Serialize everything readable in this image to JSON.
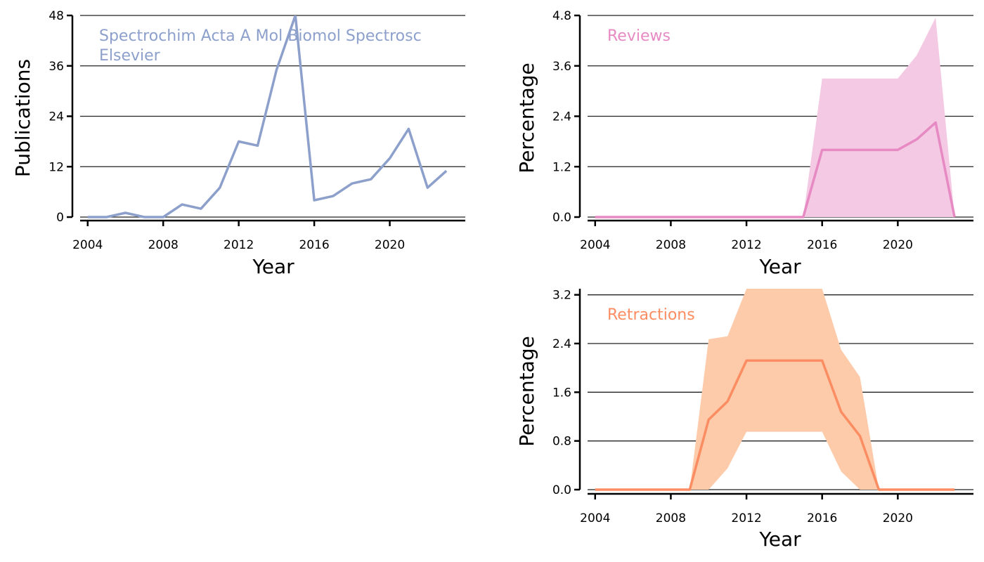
{
  "chart_data": [
    {
      "id": "publications",
      "type": "line",
      "xlabel": "Year",
      "ylabel": "Publications",
      "xlim": [
        2003.6,
        2024
      ],
      "ylim": [
        0,
        48
      ],
      "xticks": [
        2004,
        2008,
        2012,
        2016,
        2020
      ],
      "yticks": [
        0,
        12,
        24,
        36,
        48
      ],
      "ytick_labels": [
        "0",
        "12",
        "24",
        "36",
        "48"
      ],
      "grid": "horizontal",
      "annotations": [
        "Spectrochim Acta A Mol Biomol Spectrosc",
        "Elsevier"
      ],
      "color": "#8da0cb",
      "band_color": "",
      "series": [
        {
          "x": [
            2004,
            2005,
            2006,
            2007,
            2008,
            2009,
            2010,
            2011,
            2012,
            2013,
            2014,
            2015,
            2016,
            2017,
            2018,
            2019,
            2020,
            2021,
            2022,
            2023
          ],
          "values": [
            0,
            0,
            1,
            0,
            0,
            3,
            2,
            7,
            18,
            17,
            35,
            48,
            4,
            5,
            8,
            9,
            14,
            21,
            7,
            11
          ]
        }
      ]
    },
    {
      "id": "reviews",
      "type": "area",
      "xlabel": "Year",
      "ylabel": "Percentage",
      "xlim": [
        2003.6,
        2024
      ],
      "ylim": [
        0,
        4.8
      ],
      "xticks": [
        2004,
        2008,
        2012,
        2016,
        2020
      ],
      "yticks": [
        0,
        1.2,
        2.4,
        3.6,
        4.8
      ],
      "ytick_labels": [
        "0.0",
        "1.2",
        "2.4",
        "3.6",
        "4.8"
      ],
      "grid": "horizontal",
      "annotations": [
        "Reviews"
      ],
      "color": "#e78ac3",
      "band_color": "#f4c9e3",
      "series": [
        {
          "x": [
            2004,
            2005,
            2006,
            2007,
            2008,
            2009,
            2010,
            2011,
            2012,
            2013,
            2014,
            2015,
            2016,
            2017,
            2018,
            2019,
            2020,
            2021,
            2022,
            2023
          ],
          "values": [
            0,
            0,
            0,
            0,
            0,
            0,
            0,
            0,
            0,
            0,
            0,
            0,
            1.6,
            1.6,
            1.6,
            1.6,
            1.6,
            1.85,
            2.25,
            0
          ],
          "lower": [
            0,
            0,
            0,
            0,
            0,
            0,
            0,
            0,
            0,
            0,
            0,
            0,
            0,
            0,
            0,
            0,
            0,
            0,
            0,
            0
          ],
          "upper": [
            0,
            0,
            0,
            0,
            0,
            0,
            0,
            0,
            0,
            0,
            0,
            0,
            3.3,
            3.3,
            3.3,
            3.3,
            3.3,
            3.85,
            4.75,
            0
          ]
        }
      ]
    },
    {
      "id": "retractions",
      "type": "area",
      "xlabel": "Year",
      "ylabel": "Percentage",
      "xlim": [
        2003.6,
        2024
      ],
      "ylim": [
        0,
        3.3
      ],
      "xticks": [
        2004,
        2008,
        2012,
        2016,
        2020
      ],
      "yticks": [
        0,
        0.8,
        1.6,
        2.4,
        3.2
      ],
      "ytick_labels": [
        "0.0",
        "0.8",
        "1.6",
        "2.4",
        "3.2"
      ],
      "grid": "horizontal",
      "annotations": [
        "Retractions"
      ],
      "color": "#fc8d62",
      "band_color": "#fdcbaa",
      "series": [
        {
          "x": [
            2004,
            2005,
            2006,
            2007,
            2008,
            2009,
            2010,
            2011,
            2012,
            2013,
            2014,
            2015,
            2016,
            2017,
            2018,
            2019,
            2020,
            2021,
            2022,
            2023
          ],
          "values": [
            0,
            0,
            0,
            0,
            0,
            0,
            1.15,
            1.45,
            2.12,
            2.12,
            2.12,
            2.12,
            2.12,
            1.28,
            0.88,
            0,
            0,
            0,
            0,
            0
          ],
          "lower": [
            0,
            0,
            0,
            0,
            0,
            0,
            0,
            0.35,
            0.95,
            0.95,
            0.95,
            0.95,
            0.95,
            0.3,
            0,
            0,
            0,
            0,
            0,
            0
          ],
          "upper": [
            0,
            0,
            0,
            0,
            0,
            0,
            2.47,
            2.52,
            3.3,
            3.3,
            3.3,
            3.3,
            3.3,
            2.3,
            1.85,
            0,
            0,
            0,
            0,
            0
          ]
        }
      ]
    }
  ]
}
